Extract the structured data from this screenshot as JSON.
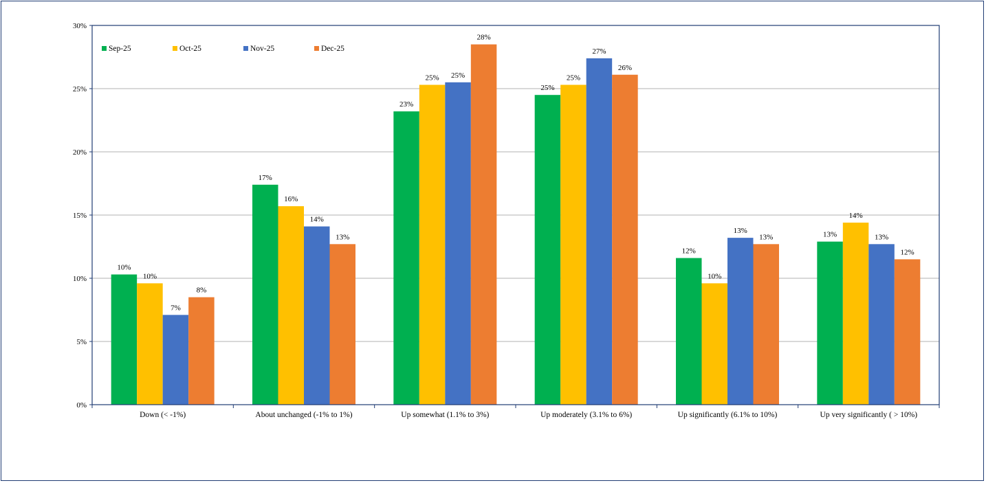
{
  "chart_data": {
    "type": "bar",
    "title": "",
    "xlabel": "",
    "ylabel": "",
    "ylim": [
      0,
      30
    ],
    "ytick_step": 5,
    "ytick_suffix": "%",
    "grid": true,
    "legend_position": "top-left",
    "categories": [
      "Down (< -1%)",
      "About unchanged (-1% to 1%)",
      "Up somewhat (1.1% to 3%)",
      "Up moderately (3.1% to 6%)",
      "Up significantly (6.1% to 10%)",
      "Up very significantly ( > 10%)"
    ],
    "series": [
      {
        "name": "Sep-25",
        "color": "#00b050",
        "values": [
          10.3,
          17.4,
          23.2,
          24.5,
          11.6,
          12.9
        ],
        "labels": [
          "10%",
          "17%",
          "23%",
          "25%",
          "12%",
          "13%"
        ]
      },
      {
        "name": "Oct-25",
        "color": "#ffc000",
        "values": [
          9.6,
          15.7,
          25.3,
          25.3,
          9.6,
          14.4
        ],
        "labels": [
          "10%",
          "16%",
          "25%",
          "25%",
          "10%",
          "14%"
        ]
      },
      {
        "name": "Nov-25",
        "color": "#4472c4",
        "values": [
          7.1,
          14.1,
          25.5,
          27.4,
          13.2,
          12.7
        ],
        "labels": [
          "7%",
          "14%",
          "25%",
          "27%",
          "13%",
          "13%"
        ]
      },
      {
        "name": "Dec-25",
        "color": "#ed7d31",
        "values": [
          8.5,
          12.7,
          28.5,
          26.1,
          12.7,
          11.5
        ],
        "labels": [
          "8%",
          "13%",
          "28%",
          "26%",
          "13%",
          "12%"
        ]
      }
    ]
  }
}
